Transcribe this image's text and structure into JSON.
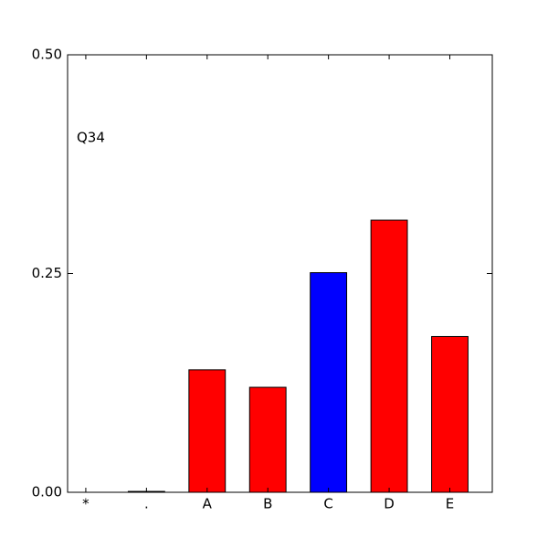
{
  "chart_data": {
    "type": "bar",
    "annotation": "Q34",
    "categories": [
      "*",
      ".",
      "A",
      "B",
      "C",
      "D",
      "E"
    ],
    "values": [
      0,
      0.001,
      0.14,
      0.12,
      0.251,
      0.311,
      0.178
    ],
    "colors": [
      "#ff0000",
      "#ff0000",
      "#ff0000",
      "#ff0000",
      "#0000ff",
      "#ff0000",
      "#ff0000"
    ],
    "ylim": [
      0,
      0.5
    ],
    "yticks": [
      {
        "value": 0,
        "label": "0.00"
      },
      0.25,
      {
        "value": 0.5,
        "label": "0.50"
      }
    ]
  }
}
